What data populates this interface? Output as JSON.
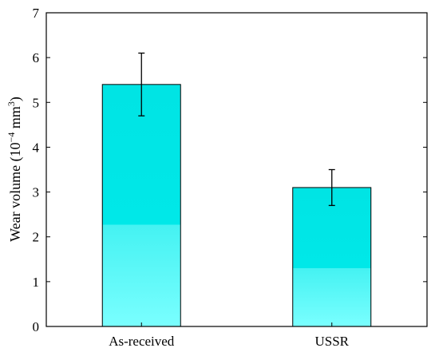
{
  "chart_data": {
    "type": "bar",
    "categories": [
      "As-received",
      "USSR"
    ],
    "values": [
      5.4,
      3.1
    ],
    "errors": [
      0.7,
      0.4
    ],
    "title": "",
    "xlabel": "",
    "ylabel": {
      "prefix": "Wear volume (10",
      "exp1": "−4",
      "unit": " mm",
      "exp2": "3",
      "suffix": ")"
    },
    "ylim": [
      0,
      7
    ],
    "yticks": [
      "0",
      "1",
      "2",
      "3",
      "4",
      "5",
      "6",
      "7"
    ],
    "grid": false,
    "legend": "none",
    "colors": {
      "bar_top": "#00E4E4",
      "bar_bottom": "#7AFFFF",
      "edge": "#000000"
    }
  }
}
